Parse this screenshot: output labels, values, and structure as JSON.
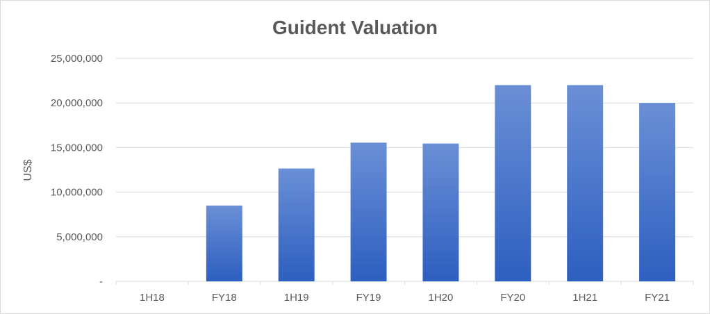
{
  "chart_data": {
    "type": "bar",
    "title": "Guident Valuation",
    "xlabel": "",
    "ylabel": "US$",
    "categories": [
      "1H18",
      "FY18",
      "1H19",
      "FY19",
      "1H20",
      "FY20",
      "1H21",
      "FY21"
    ],
    "values": [
      0,
      8500000,
      12650000,
      15550000,
      15450000,
      22000000,
      22000000,
      20000000
    ],
    "ylim": [
      0,
      25000000
    ],
    "yticks": [
      0,
      5000000,
      10000000,
      15000000,
      20000000,
      25000000
    ],
    "ytick_labels": [
      "-",
      "5,000,000",
      "10,000,000",
      "15,000,000",
      "20,000,000",
      "25,000,000"
    ],
    "grid": true,
    "legend": "none",
    "colors": {
      "bar_top": "#6a8fd6",
      "bar_bottom": "#2d5fc0"
    }
  }
}
